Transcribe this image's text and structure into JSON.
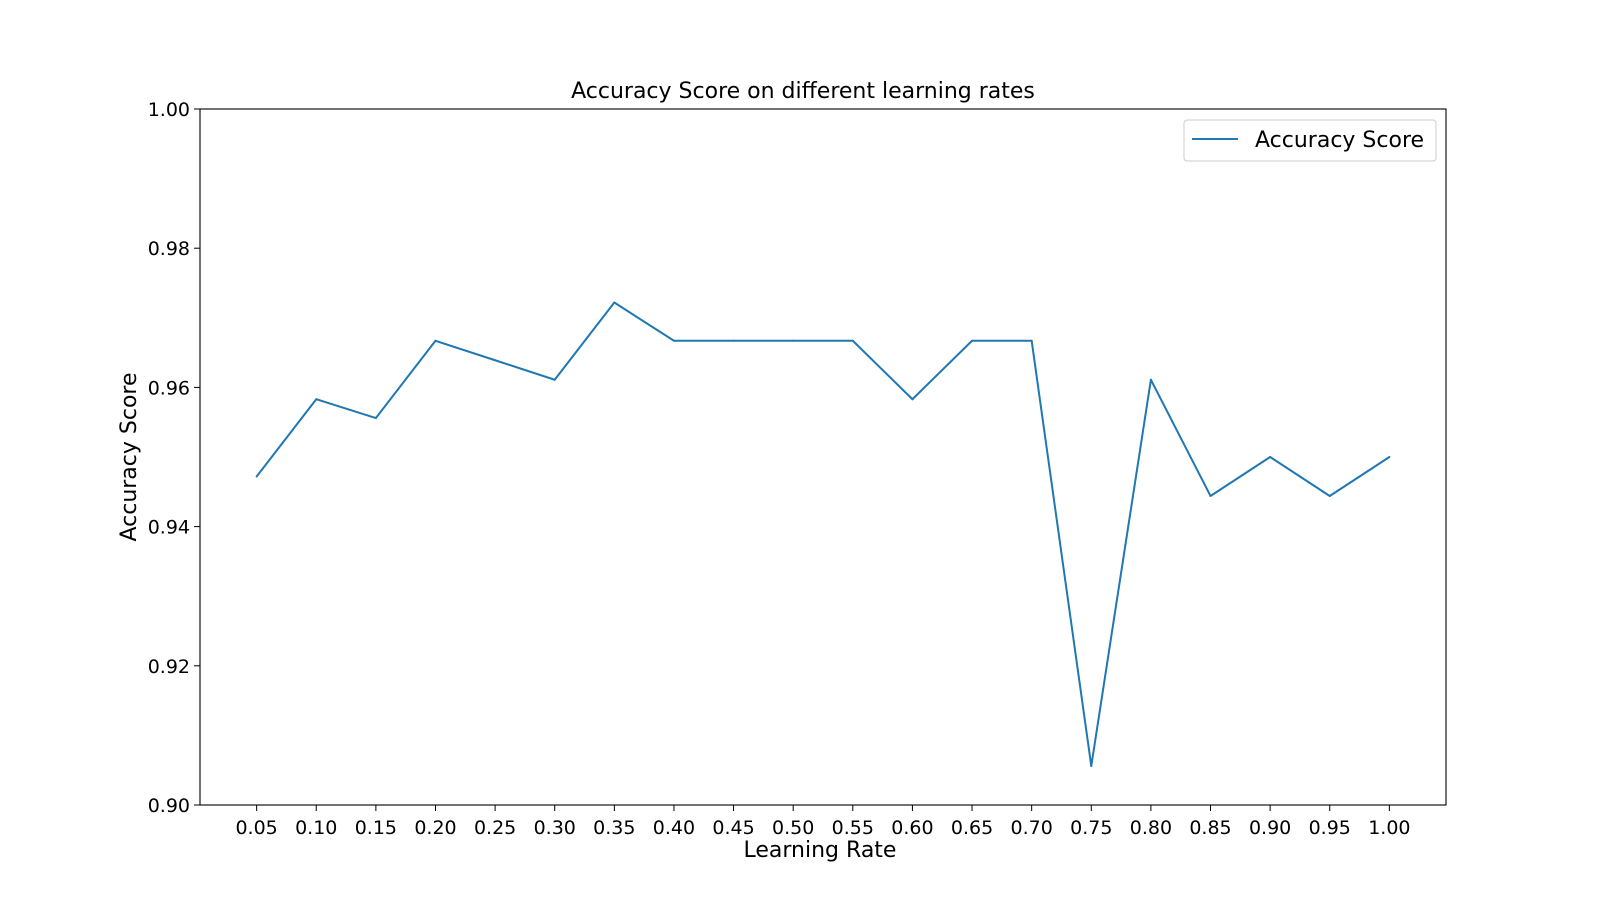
{
  "chart_data": {
    "type": "line",
    "title": "Accuracy Score on different learning rates",
    "xlabel": "Learning Rate",
    "ylabel": "Accuracy Score",
    "x": [
      0.05,
      0.1,
      0.15,
      0.2,
      0.25,
      0.3,
      0.35,
      0.4,
      0.45,
      0.5,
      0.55,
      0.6,
      0.65,
      0.7,
      0.75,
      0.8,
      0.85,
      0.9,
      0.95,
      1.0
    ],
    "x_tick_labels": [
      "0.05",
      "0.10",
      "0.15",
      "0.20",
      "0.25",
      "0.30",
      "0.35",
      "0.40",
      "0.45",
      "0.50",
      "0.55",
      "0.60",
      "0.65",
      "0.70",
      "0.75",
      "0.80",
      "0.85",
      "0.90",
      "0.95",
      "1.00"
    ],
    "series": [
      {
        "name": "Accuracy Score",
        "color": "#1f77b4",
        "values": [
          0.9472,
          0.9583,
          0.9556,
          0.9667,
          0.9639,
          0.9611,
          0.9722,
          0.9667,
          0.9667,
          0.9667,
          0.9667,
          0.9583,
          0.9667,
          0.9667,
          0.9056,
          0.9611,
          0.9444,
          0.95,
          0.9444,
          0.95
        ]
      }
    ],
    "xlim": [
      0.0025,
      1.0475
    ],
    "ylim": [
      0.9,
      1.0
    ],
    "y_ticks": [
      0.9,
      0.92,
      0.94,
      0.96,
      0.98,
      1.0
    ],
    "y_tick_labels": [
      "0.90",
      "0.92",
      "0.94",
      "0.96",
      "0.98",
      "1.00"
    ],
    "grid": false,
    "legend_position": "top-right"
  }
}
